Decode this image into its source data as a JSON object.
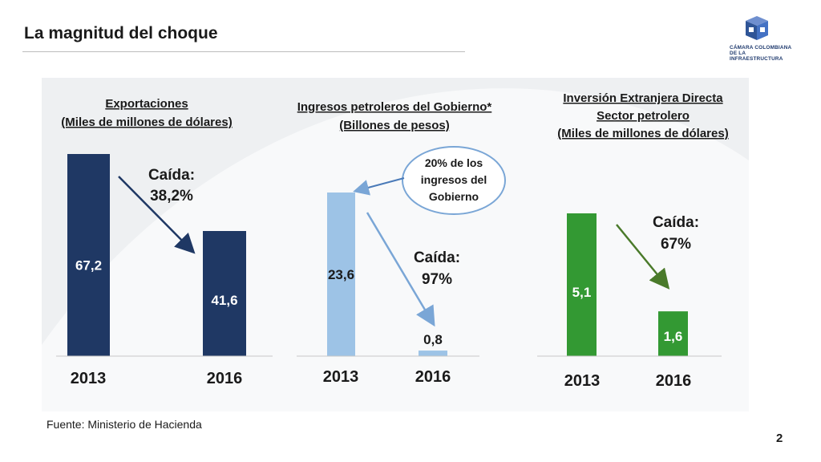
{
  "slide": {
    "title": "La magnitud del choque",
    "source": "Fuente: Ministerio de Hacienda",
    "page_number": "2"
  },
  "logo": {
    "line1": "CÁMARA COLOMBIANA",
    "line2": "DE LA INFRAESTRUCTURA"
  },
  "colors": {
    "navy": "#1f3864",
    "lightblue": "#9dc3e6",
    "green": "#339933"
  },
  "chart_data": [
    {
      "type": "bar",
      "title_lines": [
        "Exportaciones",
        "(Miles de millones de dólares)"
      ],
      "categories": [
        "2013",
        "2016"
      ],
      "values": [
        67.2,
        41.6
      ],
      "value_labels": [
        "67,2",
        "41,6"
      ],
      "annotation_lines": [
        "Caída:",
        "38,2%"
      ],
      "color": "#1f3864"
    },
    {
      "type": "bar",
      "title_lines": [
        "Ingresos petroleros del Gobierno*",
        "(Billones de pesos)"
      ],
      "categories": [
        "2013",
        "2016"
      ],
      "values": [
        23.6,
        0.8
      ],
      "value_labels": [
        "23,6",
        "0,8"
      ],
      "annotation_lines": [
        "Caída:",
        "97%"
      ],
      "callout_lines": [
        "20% de los",
        "ingresos del",
        "Gobierno"
      ],
      "color": "#9dc3e6"
    },
    {
      "type": "bar",
      "title_lines": [
        "Inversión Extranjera Directa",
        "Sector petrolero",
        "(Miles de millones de dólares)"
      ],
      "categories": [
        "2013",
        "2016"
      ],
      "values": [
        5.1,
        1.6
      ],
      "value_labels": [
        "5,1",
        "1,6"
      ],
      "annotation_lines": [
        "Caída:",
        "67%"
      ],
      "color": "#339933"
    }
  ]
}
